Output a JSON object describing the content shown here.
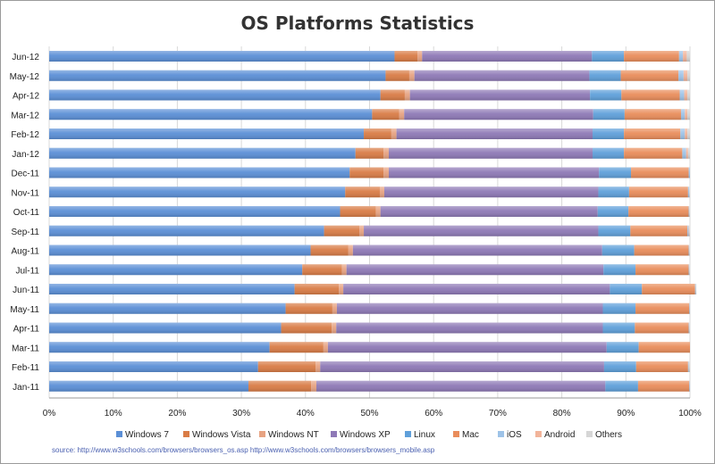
{
  "chart_data": {
    "type": "bar",
    "orientation": "horizontal",
    "stacked": true,
    "title": "OS Platforms Statistics",
    "xlabel": "",
    "ylabel": "",
    "xlim": [
      0,
      100
    ],
    "x_ticks": [
      "0%",
      "10%",
      "20%",
      "30%",
      "40%",
      "50%",
      "60%",
      "70%",
      "80%",
      "90%",
      "100%"
    ],
    "grid": true,
    "legend_position": "bottom",
    "categories": [
      "Jun-12",
      "May-12",
      "Apr-12",
      "Mar-12",
      "Feb-12",
      "Jan-12",
      "Dec-11",
      "Nov-11",
      "Oct-11",
      "Sep-11",
      "Aug-11",
      "Jul-11",
      "Jun-11",
      "May-11",
      "Apr-11",
      "Mar-11",
      "Feb-11",
      "Jan-11"
    ],
    "series": [
      {
        "name": "Windows 7",
        "color": "#5b8fd6",
        "values": [
          53.9,
          52.5,
          51.7,
          50.4,
          49.1,
          47.8,
          46.9,
          46.2,
          45.4,
          42.9,
          40.8,
          39.5,
          38.3,
          36.9,
          36.2,
          34.4,
          32.6,
          31.1
        ]
      },
      {
        "name": "Windows Vista",
        "color": "#d97c46",
        "values": [
          3.6,
          3.7,
          3.8,
          4.2,
          4.3,
          4.4,
          5.3,
          5.4,
          5.6,
          5.5,
          5.9,
          6.2,
          6.9,
          7.3,
          7.9,
          8.4,
          9.0,
          9.8
        ]
      },
      {
        "name": "Windows NT",
        "color": "#e7a382",
        "values": [
          0.7,
          0.8,
          0.8,
          0.8,
          0.8,
          0.8,
          0.8,
          0.7,
          0.7,
          0.7,
          0.7,
          0.7,
          0.7,
          0.7,
          0.7,
          0.7,
          0.7,
          0.8
        ]
      },
      {
        "name": "Windows XP",
        "color": "#8e79b6",
        "values": [
          26.5,
          27.3,
          28.1,
          29.5,
          30.6,
          31.8,
          32.8,
          33.4,
          33.9,
          36.6,
          38.9,
          40.1,
          41.6,
          41.5,
          41.6,
          43.5,
          44.3,
          45.1
        ]
      },
      {
        "name": "Linux",
        "color": "#5fa0da",
        "values": [
          5.0,
          4.9,
          4.9,
          4.9,
          4.9,
          4.9,
          5.0,
          4.8,
          4.8,
          5.0,
          5.0,
          5.0,
          5.0,
          5.1,
          5.0,
          5.0,
          5.0,
          5.1
        ]
      },
      {
        "name": "Mac",
        "color": "#e98d5b",
        "values": [
          8.6,
          9.0,
          9.1,
          8.8,
          8.8,
          9.1,
          9.0,
          9.2,
          9.4,
          8.9,
          8.5,
          8.3,
          8.3,
          8.4,
          8.4,
          8.0,
          8.1,
          8.0
        ]
      },
      {
        "name": "iOS",
        "color": "#9ec3e8",
        "values": [
          0.6,
          0.8,
          0.7,
          0.6,
          0.7,
          0.6,
          0.2,
          0.2,
          0.1,
          0.2,
          0.1,
          0.1,
          0.1,
          0.1,
          0.1,
          0.0,
          0.1,
          0.1
        ]
      },
      {
        "name": "Android",
        "color": "#f2b49a",
        "values": [
          0.6,
          0.6,
          0.5,
          0.4,
          0.4,
          0.3,
          0.0,
          0.0,
          0.0,
          0.1,
          0.0,
          0.0,
          0.0,
          0.0,
          0.0,
          0.0,
          0.0,
          0.0
        ]
      },
      {
        "name": "Others",
        "color": "#d6d6d6",
        "values": [
          0.5,
          0.4,
          0.4,
          0.4,
          0.4,
          0.3,
          0.0,
          0.1,
          0.1,
          0.1,
          0.1,
          0.1,
          0.1,
          0.0,
          0.1,
          0.0,
          0.2,
          0.0
        ]
      }
    ],
    "source": "source: http://www.w3schools.com/browsers/browsers_os.asp  http://www.w3schools.com/browsers/browsers_mobile.asp"
  }
}
